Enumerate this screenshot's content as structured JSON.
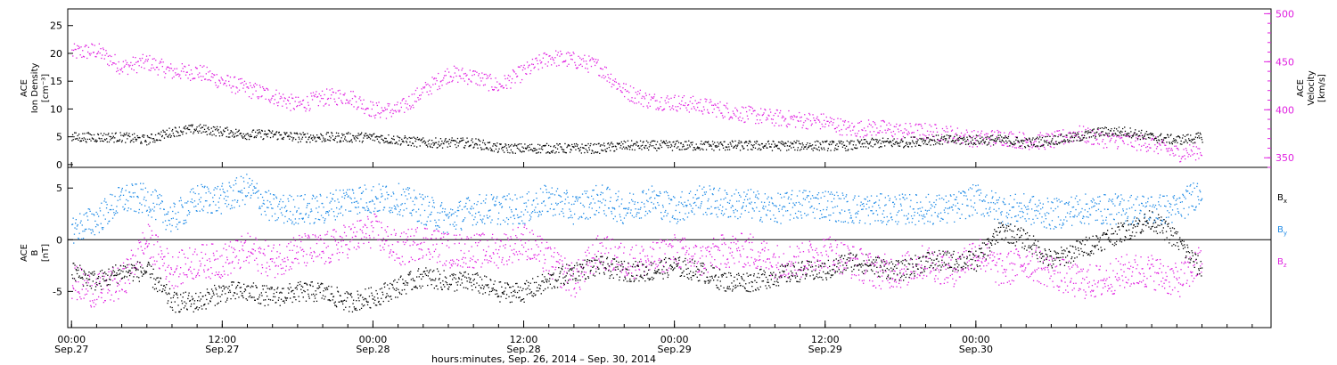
{
  "colors": {
    "density": "#000000",
    "velocity": "#e020e0",
    "bx": "#000000",
    "by": "#1e8ae6",
    "bz": "#e020e0",
    "frame": "#000000"
  },
  "chart_data": [
    {
      "type": "scatter",
      "panel": "top",
      "ylabel_left": [
        "ACE",
        "Ion Density",
        "[cm⁻³]"
      ],
      "ylabel_right": [
        "ACE",
        "Velocity",
        "[km/s]"
      ],
      "ylim_left": [
        -0.5,
        28
      ],
      "yticks_left": [
        0,
        5,
        10,
        15,
        20,
        25
      ],
      "ylim_right": [
        340,
        505
      ],
      "yticks_right": [
        350,
        400,
        450,
        500
      ],
      "xlim_hours": [
        -0.3,
        95.5
      ],
      "series": [
        {
          "axis": "left",
          "x": [
            0,
            2,
            4,
            6,
            8,
            10,
            12,
            14,
            16,
            18,
            20,
            22,
            24,
            26,
            28,
            30,
            32,
            34,
            36,
            38,
            40,
            42,
            44,
            46,
            48,
            50,
            52,
            54,
            56,
            58,
            60,
            62,
            64,
            66,
            68,
            70,
            72,
            74,
            76,
            78,
            80,
            82,
            84,
            86,
            88,
            90
          ],
          "values": [
            5,
            5,
            5,
            4.5,
            6,
            6.5,
            6,
            5.5,
            5.5,
            5,
            5,
            5,
            5,
            4.5,
            4,
            4,
            4,
            3,
            3,
            3,
            3,
            3,
            3.5,
            3.5,
            3.5,
            3.5,
            3.5,
            3.5,
            3.5,
            3.5,
            3.5,
            3.5,
            4,
            4,
            4.5,
            4.5,
            4.5,
            4.5,
            4,
            4.5,
            5,
            6,
            6,
            5,
            4.5,
            5
          ]
        },
        {
          "axis": "right",
          "x": [
            0,
            2,
            4,
            6,
            8,
            10,
            12,
            14,
            16,
            18,
            20,
            22,
            24,
            26,
            28,
            30,
            32,
            34,
            36,
            38,
            40,
            42,
            44,
            46,
            48,
            50,
            52,
            54,
            56,
            58,
            60,
            62,
            64,
            66,
            68,
            70,
            72,
            74,
            76,
            78,
            80,
            82,
            84,
            86,
            88,
            90
          ],
          "values": [
            460,
            462,
            445,
            450,
            440,
            440,
            430,
            422,
            415,
            405,
            413,
            415,
            400,
            400,
            420,
            438,
            435,
            425,
            440,
            455,
            452,
            445,
            420,
            410,
            408,
            405,
            400,
            395,
            392,
            390,
            388,
            380,
            382,
            378,
            378,
            375,
            370,
            372,
            368,
            368,
            376,
            370,
            368,
            365,
            355,
            358
          ]
        }
      ]
    },
    {
      "type": "scatter",
      "panel": "bottom",
      "ylabel": [
        "ACE",
        "B",
        "[nT]"
      ],
      "ylim": [
        -8.5,
        7
      ],
      "yticks": [
        -5,
        0,
        5
      ],
      "xlim_hours": [
        -0.3,
        95.5
      ],
      "legend": [
        "B",
        "B",
        "B"
      ],
      "legend_sub": [
        "x",
        "y",
        "z"
      ],
      "xticks": [
        "00:00",
        "12:00",
        "00:00",
        "12:00",
        "00:00",
        "12:00",
        "00:00"
      ],
      "xticks_date": [
        "Sep.27",
        "Sep.27",
        "Sep.28",
        "Sep.28",
        "Sep.29",
        "Sep.29",
        "Sep.30"
      ],
      "xlabel": "hours:minutes, Sep. 26, 2014 – Sep. 30, 2014",
      "series": [
        {
          "name": "Bx",
          "x": [
            0,
            2,
            4,
            6,
            8,
            10,
            12,
            14,
            16,
            18,
            20,
            22,
            24,
            26,
            28,
            30,
            32,
            34,
            36,
            38,
            40,
            42,
            44,
            46,
            48,
            50,
            52,
            54,
            56,
            58,
            60,
            62,
            64,
            66,
            68,
            70,
            72,
            74,
            76,
            78,
            80,
            82,
            84,
            86,
            88,
            90
          ],
          "values": [
            -3,
            -4,
            -3,
            -3,
            -6,
            -6,
            -5,
            -5,
            -5.5,
            -5,
            -5,
            -6,
            -5.5,
            -4.5,
            -3.5,
            -4,
            -4,
            -5,
            -5,
            -4,
            -3,
            -2.5,
            -3,
            -3,
            -2.5,
            -3,
            -4,
            -4,
            -3.5,
            -3,
            -3,
            -2,
            -2.5,
            -3,
            -2,
            -2,
            -2,
            1,
            0,
            -2,
            -1,
            0,
            1,
            2,
            0,
            -3
          ]
        },
        {
          "name": "By",
          "x": [
            0,
            2,
            4,
            6,
            8,
            10,
            12,
            14,
            16,
            18,
            20,
            22,
            24,
            26,
            28,
            30,
            32,
            34,
            36,
            38,
            40,
            42,
            44,
            46,
            48,
            50,
            52,
            54,
            56,
            58,
            60,
            62,
            64,
            66,
            68,
            70,
            72,
            74,
            76,
            78,
            80,
            82,
            84,
            86,
            88,
            90
          ],
          "values": [
            1,
            2,
            4,
            4,
            2,
            4,
            4,
            5,
            3,
            3,
            3,
            4,
            4,
            4,
            3,
            2,
            3,
            3,
            3,
            4,
            3,
            4,
            3,
            4,
            3,
            4,
            3.5,
            3.5,
            3,
            3.5,
            3.5,
            3,
            3,
            3,
            3,
            3,
            4,
            3,
            3,
            2.5,
            3,
            3,
            3,
            3,
            3,
            5
          ]
        },
        {
          "name": "Bz",
          "x": [
            0,
            2,
            4,
            6,
            8,
            10,
            12,
            14,
            16,
            18,
            20,
            22,
            24,
            26,
            28,
            30,
            32,
            34,
            36,
            38,
            40,
            42,
            44,
            46,
            48,
            50,
            52,
            54,
            56,
            58,
            60,
            62,
            64,
            66,
            68,
            70,
            72,
            74,
            76,
            78,
            80,
            82,
            84,
            86,
            88,
            90
          ],
          "values": [
            -4,
            -5,
            -4,
            0,
            -3,
            -2,
            -2,
            -1,
            -2,
            -1,
            -1,
            0,
            1,
            -1,
            0,
            -1,
            -1,
            -1,
            0,
            -2,
            -4,
            -1,
            -2,
            -2,
            -1,
            -2,
            -1,
            -1,
            -2,
            -2,
            -1,
            -2,
            -3,
            -3,
            -2,
            -3,
            -1,
            -3,
            -2,
            -3,
            -4,
            -4,
            -3,
            -3,
            -4,
            -2
          ]
        }
      ]
    }
  ]
}
